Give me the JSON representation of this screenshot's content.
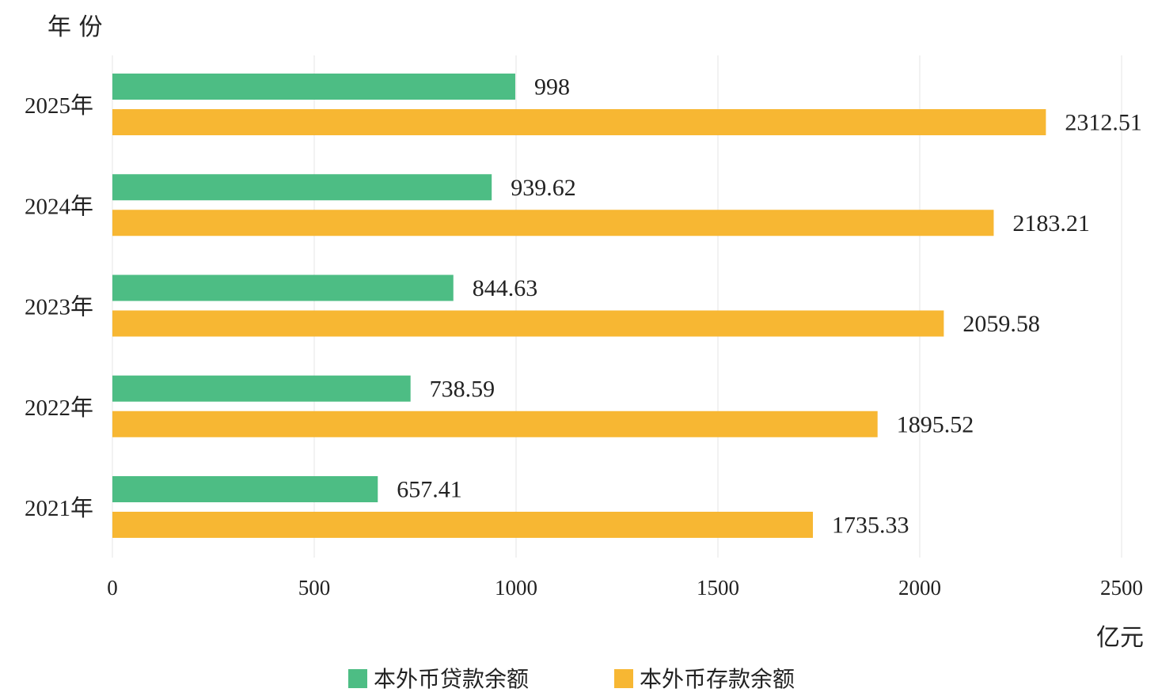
{
  "chart_data": {
    "type": "bar",
    "orientation": "horizontal",
    "ylabel": "年 份",
    "xlabel": "亿元",
    "categories": [
      "2025年",
      "2024年",
      "2023年",
      "2022年",
      "2021年"
    ],
    "series": [
      {
        "name": "本外币贷款余额",
        "color": "#4dbd84",
        "values": [
          998,
          939.62,
          844.63,
          738.59,
          657.41
        ]
      },
      {
        "name": "本外币存款余额",
        "color": "#f7b733",
        "values": [
          2312.51,
          2183.21,
          2059.58,
          1895.52,
          1735.33
        ]
      }
    ],
    "value_labels": [
      [
        "998",
        "939.62",
        "844.63",
        "738.59",
        "657.41"
      ],
      [
        "2312.51",
        "2183.21",
        "2059.58",
        "1895.52",
        "1735.33"
      ]
    ],
    "xlim": [
      0,
      2500
    ],
    "xticks": [
      0,
      500,
      1000,
      1500,
      2000,
      2500
    ],
    "grid": true,
    "legend": "bottom"
  }
}
